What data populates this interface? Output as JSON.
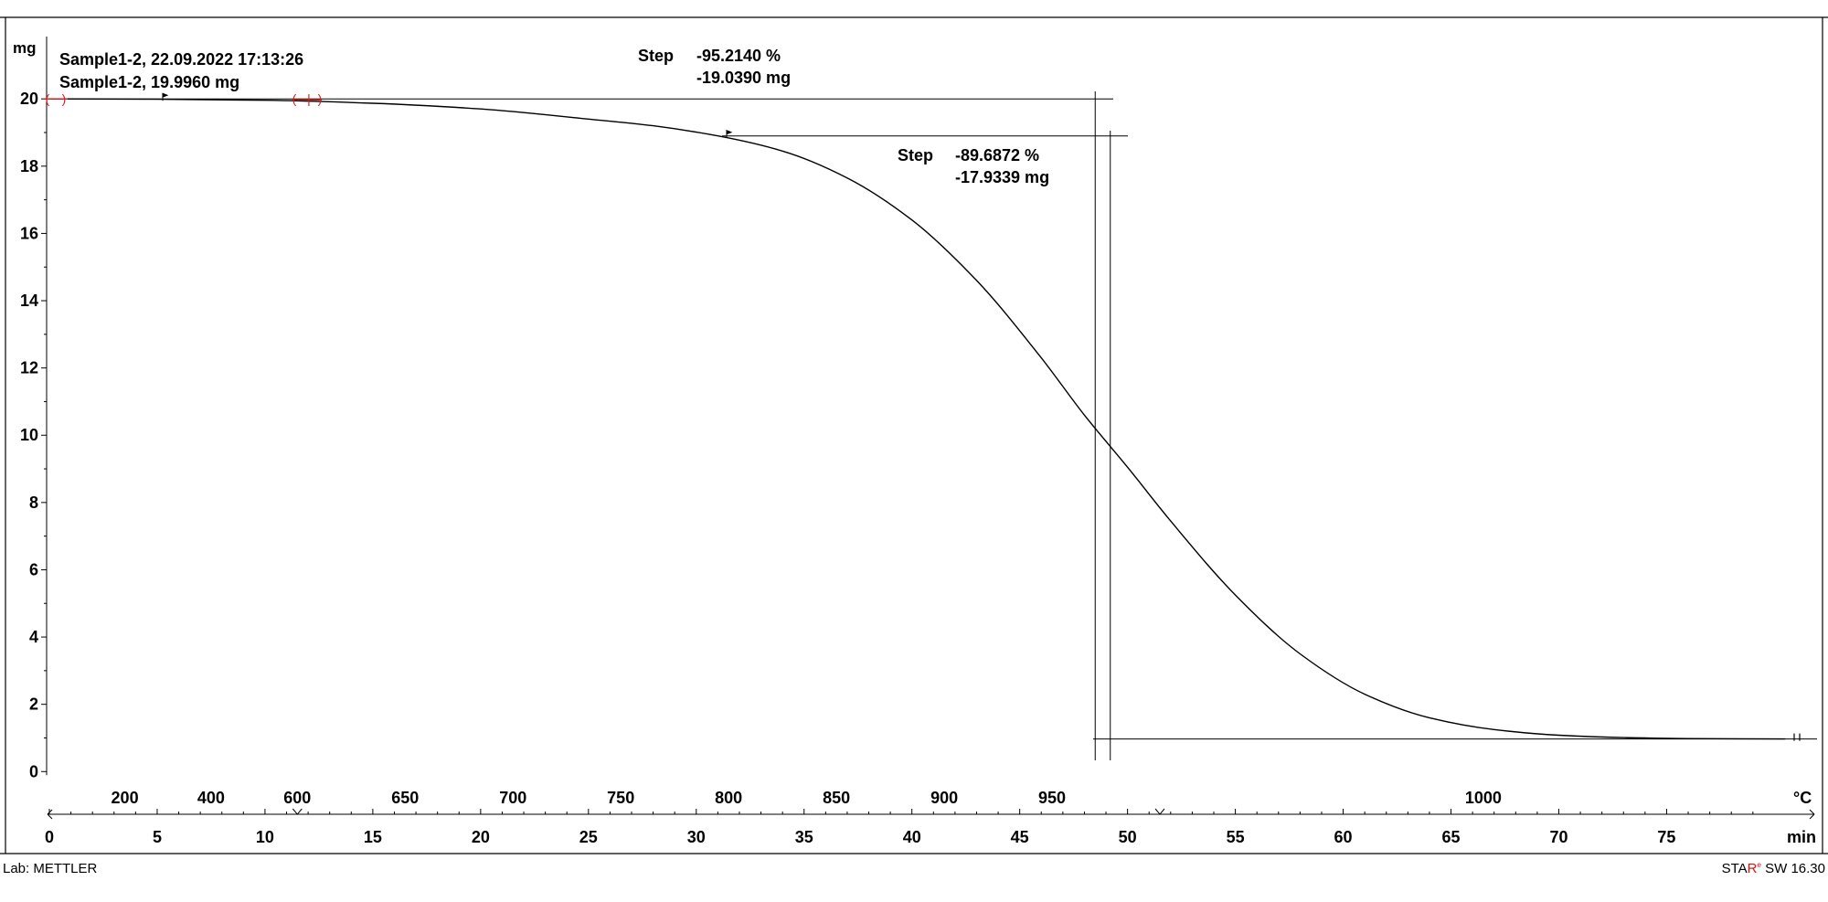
{
  "chart_data": {
    "type": "line",
    "y_unit": "mg",
    "yticks": [
      0,
      2,
      4,
      6,
      8,
      10,
      12,
      14,
      16,
      18,
      20
    ],
    "ylim": [
      -0.4,
      21.5
    ],
    "x_unit": "min",
    "xticks": [
      0,
      5,
      10,
      15,
      20,
      25,
      30,
      35,
      40,
      45,
      50,
      55,
      60,
      65,
      70,
      75
    ],
    "xlim": [
      0,
      81
    ],
    "temp_unit": "°C",
    "temp_ticks": [
      {
        "label": "200",
        "min": 3.5
      },
      {
        "label": "400",
        "min": 7.5
      },
      {
        "label": "600",
        "min": 11.5
      },
      {
        "label": "650",
        "min": 16.5
      },
      {
        "label": "700",
        "min": 21.5
      },
      {
        "label": "750",
        "min": 26.5
      },
      {
        "label": "800",
        "min": 31.5
      },
      {
        "label": "850",
        "min": 36.5
      },
      {
        "label": "900",
        "min": 41.5
      },
      {
        "label": "950",
        "min": 46.5
      },
      {
        "label": "1000",
        "min": 66.5
      }
    ],
    "legend_lines": [
      "Sample1-2, 22.09.2022 17:13:26",
      "Sample1-2, 19.9960 mg"
    ],
    "series": [
      {
        "x": [
          0,
          5,
          10,
          15,
          20,
          25,
          28,
          31,
          34,
          37,
          40,
          43,
          46,
          48,
          50,
          52,
          55,
          58,
          61,
          64,
          67,
          70,
          73,
          76,
          80.5
        ],
        "y": [
          20.0,
          19.99,
          19.96,
          19.87,
          19.7,
          19.4,
          19.2,
          18.9,
          18.45,
          17.65,
          16.4,
          14.6,
          12.3,
          10.6,
          9.05,
          7.45,
          5.25,
          3.5,
          2.3,
          1.6,
          1.25,
          1.08,
          1.01,
          0.98,
          0.97
        ]
      }
    ],
    "steps": [
      {
        "label": "Step",
        "percent": "-95.2140 %",
        "mass": "-19.0390 mg",
        "upper_level": 20.0,
        "lower_level": 0.97,
        "x_vertical": 48.5
      },
      {
        "label": "Step",
        "percent": "-89.6872 %",
        "mass": "-17.9339 mg",
        "upper_level": 18.9,
        "lower_level": 0.97,
        "x_vertical": 49.2
      }
    ],
    "grid": false
  },
  "footer": {
    "lab": "Lab: METTLER",
    "brand_prefix": "STA",
    "brand_r": "R",
    "brand_sup": "e",
    "brand_suffix": " SW 16.30"
  }
}
